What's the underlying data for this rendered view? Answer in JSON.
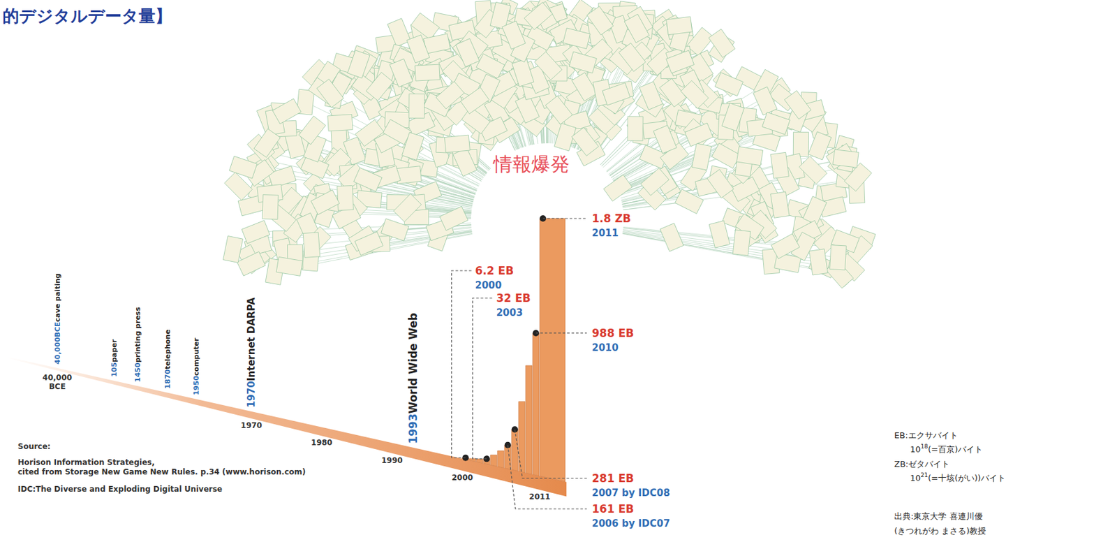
{
  "chart_data": {
    "type": "bar",
    "title": "的デジタルデータ量】",
    "annotations": [
      {
        "text": "情報爆発"
      }
    ],
    "x": [
      2000,
      2001,
      2002,
      2003,
      2004,
      2005,
      2006,
      2007,
      2008,
      2009,
      2010,
      2011
    ],
    "values": [
      6.2,
      12,
      20,
      32,
      70,
      110,
      161,
      281,
      487,
      750,
      988,
      1800
    ],
    "value_labels": [
      "6.2 EB",
      null,
      null,
      "32 EB",
      null,
      null,
      "161 EB",
      "281 EB",
      null,
      null,
      "988 EB",
      "1.8 ZB"
    ],
    "notes": [
      "2000",
      null,
      null,
      "2003",
      null,
      null,
      "2006 by IDC07",
      "2007 by IDC08",
      null,
      null,
      "2010",
      "2011"
    ],
    "data_labels": true,
    "color": "#eb9a5f",
    "xlim": [
      -40000,
      2011
    ],
    "xticks": [
      {
        "value": -40000,
        "label": "40,000 BCE"
      },
      1970,
      1980,
      1990,
      2000,
      2011
    ],
    "ylim": [
      0,
      1800
    ],
    "tick_labels": "x",
    "events": [
      {
        "value": -40000,
        "label": "40,000BCE",
        "text": "cave paiting"
      },
      {
        "value": 105,
        "label": "105",
        "text": "paper"
      },
      {
        "value": 1450,
        "label": "1450",
        "text": "printing press"
      },
      {
        "value": 1870,
        "label": "1870",
        "text": "telephone"
      },
      {
        "value": 1950,
        "label": "1950",
        "text": "computer"
      },
      {
        "value": 1970,
        "label": "1970",
        "text": "Internet DARPA"
      },
      {
        "value": 1993,
        "label": "1993",
        "text": "World Wide Web"
      }
    ],
    "source": [
      "Source:",
      "Horison Information Strategies,",
      "cited from Storage New Game New Rules. p.34 (www.horison.com)",
      "IDC:The Diverse and Exploding Digital Universe"
    ],
    "unit_notes": [
      {
        "term": "EB:エクサバイト",
        "base": "10",
        "exponent": "18",
        "text": "(=百京)バイト"
      },
      {
        "term": "ZB:ゼタバイト",
        "base": "10",
        "exponent": "21",
        "text": "(=十垓(がい))バイト"
      }
    ],
    "credit": [
      "出典:東京大学 喜連川優",
      "(きつれがわ まさる)教授"
    ]
  }
}
